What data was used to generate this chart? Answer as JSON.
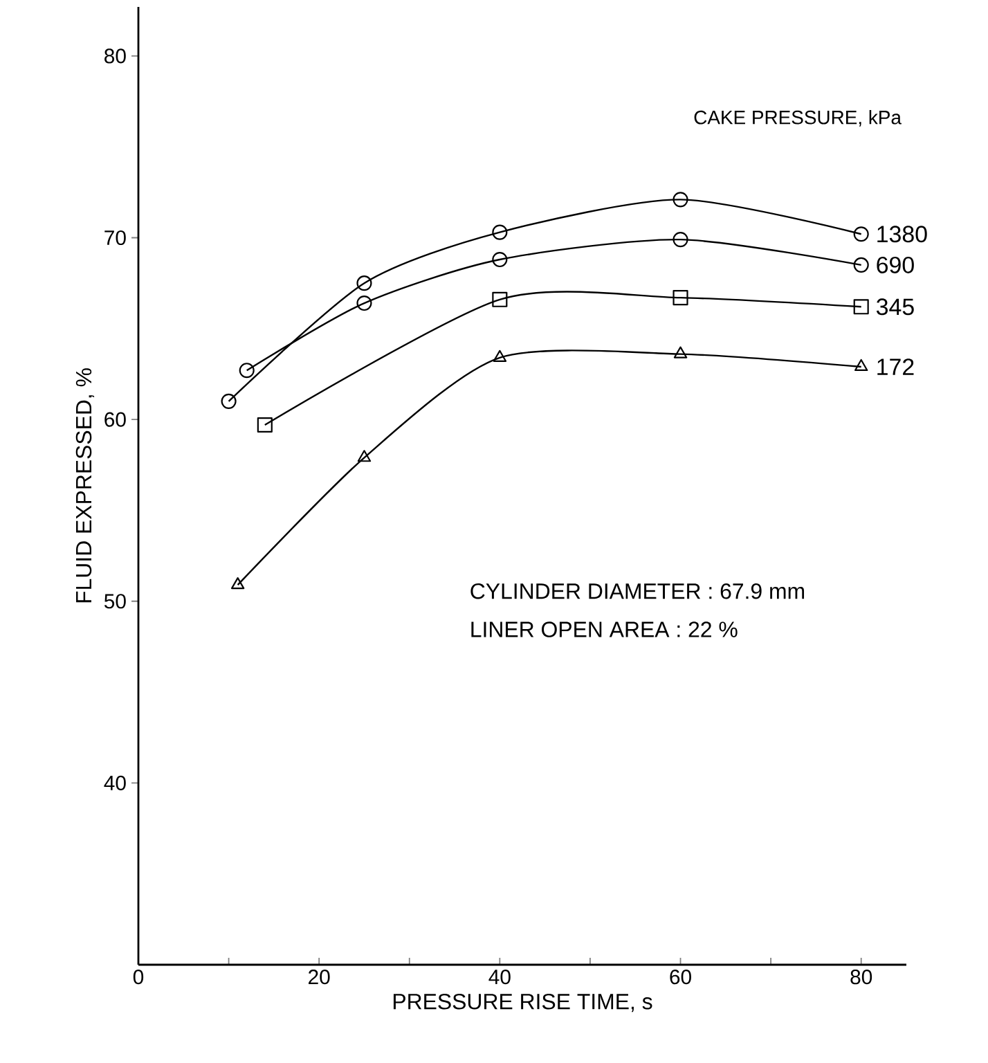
{
  "chart_data": {
    "type": "line",
    "xlabel": "PRESSURE RISE TIME, s",
    "ylabel": "FLUID EXPRESSED, %",
    "legend_title": "CAKE PRESSURE, kPa",
    "xlim": [
      0,
      85
    ],
    "ylim": [
      30,
      82.7
    ],
    "xticks": [
      0,
      {
        "value": 10,
        "label": null
      },
      20,
      {
        "value": 30,
        "label": null
      },
      40,
      {
        "value": 50,
        "label": null
      },
      60,
      {
        "value": 70,
        "label": null
      },
      80
    ],
    "yticks": [
      40,
      50,
      60,
      70,
      80
    ],
    "grid": false,
    "legend": false,
    "series": [
      {
        "name": "1380",
        "color": "#000000",
        "marker": "circle",
        "x": [
          10,
          25,
          40,
          60,
          80
        ],
        "values": [
          61.0,
          67.5,
          70.3,
          72.1,
          70.2
        ]
      },
      {
        "name": "690",
        "color": "#000000",
        "marker": "circle",
        "x": [
          12,
          25,
          40,
          60,
          80
        ],
        "values": [
          62.7,
          66.4,
          68.8,
          69.9,
          68.5
        ]
      },
      {
        "name": "345",
        "color": "#000000",
        "marker": "square",
        "x": [
          14,
          40,
          60,
          80
        ],
        "values": [
          59.7,
          66.6,
          66.7,
          66.2
        ]
      },
      {
        "name": "172",
        "color": "#000000",
        "marker": "triangle",
        "x": [
          11,
          25,
          40,
          60,
          80
        ],
        "values": [
          50.9,
          57.9,
          63.4,
          63.6,
          62.9
        ]
      }
    ],
    "annotations": [
      "CYLINDER DIAMETER : 67.9 mm",
      "LINER OPEN AREA : 22 %"
    ]
  }
}
